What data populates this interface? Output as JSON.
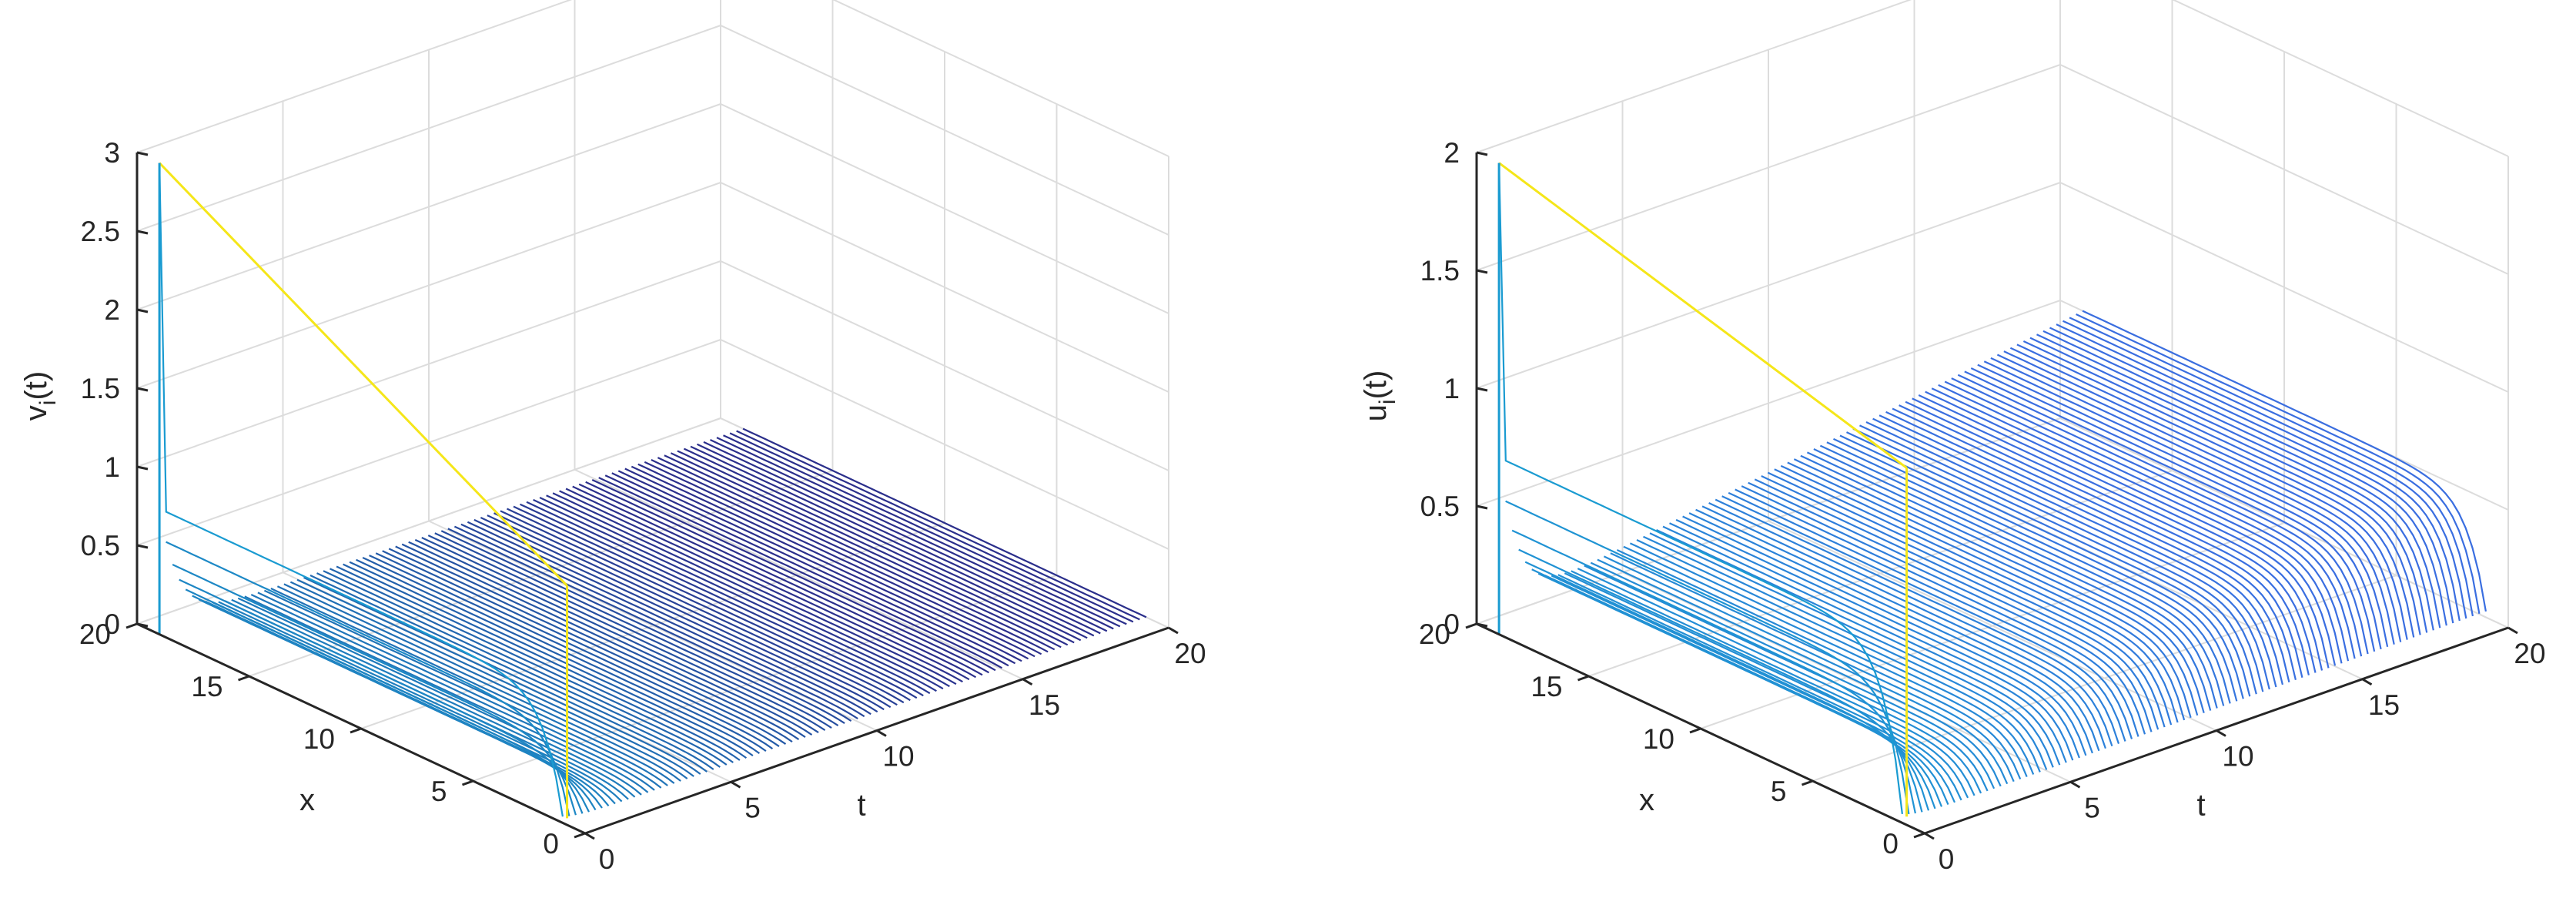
{
  "chart_data": [
    {
      "type": "surface-mesh-3d",
      "zlabel_main": "v",
      "zlabel_sub": "i",
      "zlabel_tail": "(t)",
      "xlabel": "x",
      "tlabel": "t",
      "x_ticks": [
        "0",
        "5",
        "10",
        "15",
        "20"
      ],
      "t_ticks": [
        "0",
        "5",
        "10",
        "15",
        "20"
      ],
      "z_ticks": [
        "0",
        "0.5",
        "1",
        "1.5",
        "2",
        "2.5",
        "3"
      ],
      "xlim": [
        0,
        20
      ],
      "tlim": [
        0,
        20
      ],
      "zlim": [
        0,
        3
      ],
      "grid": true,
      "x_range": [
        1,
        19
      ],
      "t_range": [
        0,
        20
      ],
      "initial_value_at_boundary": 3,
      "initial_value_interior": 0.8,
      "initial_value_low": 0,
      "steady_value": 0.05,
      "final_value": 0.0,
      "boundary_value_x1": 1.5,
      "curve_count": 90,
      "colors": {
        "high": "#f5e619",
        "mid": "#1a9bd1",
        "low": "#2b2f8c",
        "grid": "#dcdcdc",
        "axis": "#262626"
      }
    },
    {
      "type": "surface-mesh-3d",
      "zlabel_main": "u",
      "zlabel_sub": "i",
      "zlabel_tail": "(t)",
      "xlabel": "x",
      "tlabel": "t",
      "x_ticks": [
        "0",
        "5",
        "10",
        "15",
        "20"
      ],
      "t_ticks": [
        "0",
        "5",
        "10",
        "15",
        "20"
      ],
      "z_ticks": [
        "0",
        "0.5",
        "1",
        "1.5",
        "2"
      ],
      "xlim": [
        0,
        20
      ],
      "tlim": [
        0,
        20
      ],
      "zlim": [
        0,
        2
      ],
      "grid": true,
      "x_range": [
        1,
        19
      ],
      "t_range": [
        0,
        20
      ],
      "initial_value_at_boundary": 2,
      "initial_value_interior": 0.75,
      "initial_value_low": 0,
      "steady_value": 0.1,
      "final_value": 0.5,
      "boundary_value_x1": 1.5,
      "curve_count": 90,
      "colors": {
        "high": "#f5e619",
        "mid": "#1a9bd1",
        "low": "#3a6ee0",
        "grid": "#dcdcdc",
        "axis": "#262626"
      }
    }
  ]
}
